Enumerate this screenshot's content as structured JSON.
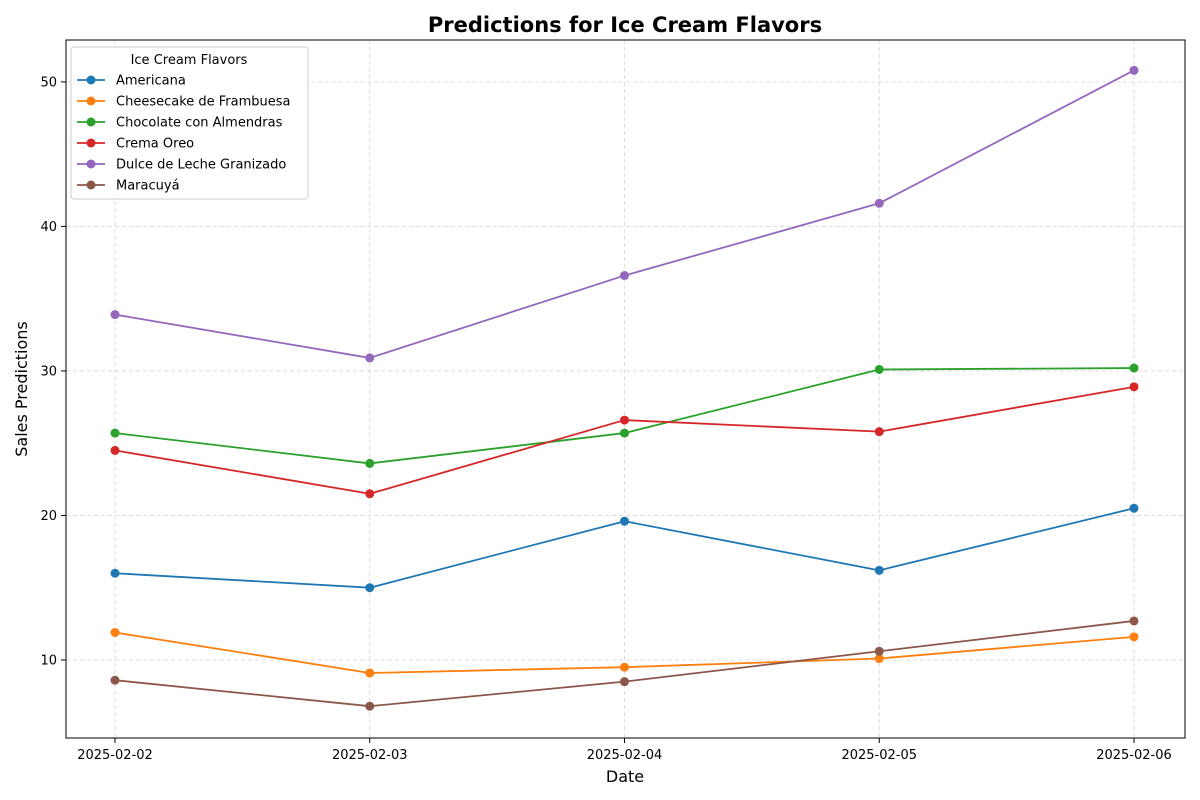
{
  "chart_data": {
    "type": "line",
    "title": "Predictions for Ice Cream Flavors",
    "xlabel": "Date",
    "ylabel": "Sales Predictions",
    "x": [
      "2025-02-02",
      "2025-02-03",
      "2025-02-04",
      "2025-02-05",
      "2025-02-06"
    ],
    "ylim": [
      4.6,
      52.9
    ],
    "yticks": [
      10,
      20,
      30,
      40,
      50
    ],
    "grid": true,
    "legend": {
      "title": "Ice Cream Flavors",
      "placement": "upper-left"
    },
    "series": [
      {
        "name": "Americana",
        "color": "#1f77b4",
        "values": [
          16.0,
          15.0,
          19.6,
          16.2,
          20.5
        ]
      },
      {
        "name": "Cheesecake de Frambuesa",
        "color": "#ff7f0e",
        "values": [
          11.9,
          9.1,
          9.5,
          10.1,
          11.6
        ]
      },
      {
        "name": "Chocolate con Almendras",
        "color": "#2ca02c",
        "values": [
          25.7,
          23.6,
          25.7,
          30.1,
          30.2
        ]
      },
      {
        "name": "Crema Oreo",
        "color": "#d62728",
        "values": [
          24.5,
          21.5,
          26.6,
          25.8,
          28.9
        ]
      },
      {
        "name": "Dulce de Leche Granizado",
        "color": "#9467bd",
        "values": [
          33.9,
          30.9,
          36.6,
          41.6,
          50.8
        ]
      },
      {
        "name": "Maracuyá",
        "color": "#8c564b",
        "values": [
          8.6,
          6.8,
          8.5,
          10.6,
          12.7
        ]
      }
    ]
  }
}
